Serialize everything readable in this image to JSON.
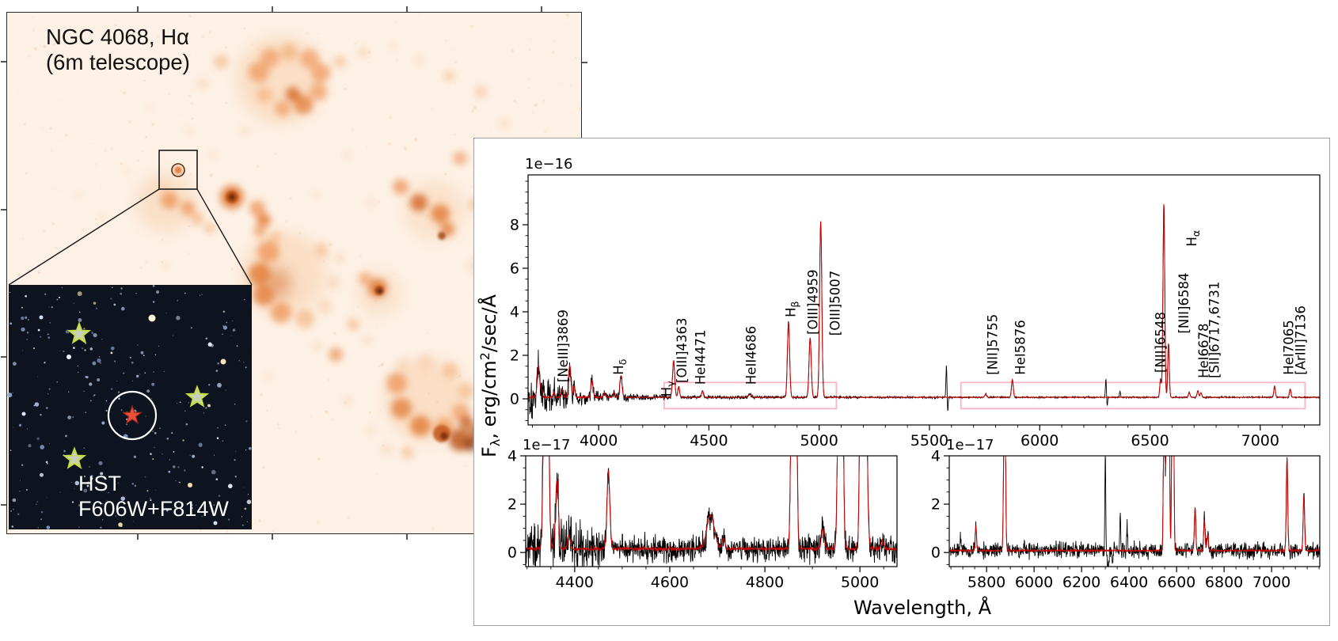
{
  "left_image": {
    "title": "NGC 4068, Hα",
    "subtitle": "(6m telescope)",
    "inset_label_line1": "HST",
    "inset_label_line2": "F606W+F814W"
  },
  "chart_data": {
    "type": "line",
    "xlabel": "Wavelength, Å",
    "ylabel": "Fλ, erg/cm²/sec/Å",
    "ylabel_parts": [
      {
        "t": "F",
        "style": "n"
      },
      {
        "t": "λ",
        "style": "sub"
      },
      {
        "t": ", erg/cm",
        "style": "n"
      },
      {
        "t": "2",
        "style": "sup"
      },
      {
        "t": "/sec/Å",
        "style": "n"
      }
    ],
    "colors": {
      "observed": "#000000",
      "model": "#cc0000",
      "zoom_box": "#ffb3c2"
    },
    "emission_line_labels": [
      {
        "text": "[NeIII]3869",
        "x": 3838,
        "y": 0.76
      },
      {
        "text": "H",
        "sub": "δ",
        "x": 4090,
        "y": 1.1
      },
      {
        "text": "H",
        "sub": "γ",
        "x": 4306,
        "y": 0.1
      },
      {
        "text": "[OIII]4363",
        "x": 4377,
        "y": 0.73
      },
      {
        "text": "HeI4471",
        "x": 4460,
        "y": 0.65
      },
      {
        "text": "HeII4686",
        "x": 4690,
        "y": 0.65
      },
      {
        "text": "H",
        "sub": "β",
        "x": 4870,
        "y": 3.75
      },
      {
        "text": "[OIII]4959",
        "x": 4970,
        "y": 2.95
      },
      {
        "text": "[OIII]5007",
        "x": 5071,
        "y": 2.9
      },
      {
        "text": "[NII]5755",
        "x": 5786,
        "y": 1.1
      },
      {
        "text": "HeI5876",
        "x": 5912,
        "y": 1.1
      },
      {
        "text": "[NII]6548",
        "x": 6546,
        "y": 1.2
      },
      {
        "text": "[NII]6584",
        "x": 6653,
        "y": 3.0
      },
      {
        "text": "H",
        "sub": "α",
        "x": 6688,
        "y": 7.0
      },
      {
        "text": "HeI6678",
        "x": 6742,
        "y": 0.95
      },
      {
        "text": "[SII]6717,6731",
        "x": 6790,
        "y": 0.95
      },
      {
        "text": "HeI7065",
        "x": 7128,
        "y": 1.1
      },
      {
        "text": "[ArIII]7136",
        "x": 7182,
        "y": 1.1
      }
    ],
    "panels": {
      "main": {
        "offset_label": "1e−16",
        "unit": "1e-16 erg/cm2/sec/A",
        "xlim": [
          3680,
          7270
        ],
        "ylim": [
          -1.2,
          10.29
        ],
        "xticks": [
          4000,
          4500,
          5000,
          5500,
          6000,
          6500,
          7000
        ],
        "yticks": [
          0,
          2,
          4,
          6,
          8
        ],
        "x_minor": 100,
        "y_minor": 0.5,
        "continuum_model": 0.07,
        "peaks_model_gaussians": [
          [
            3727,
            1.5,
            5
          ],
          [
            3740,
            0.35,
            4
          ],
          [
            3798,
            0.25,
            4
          ],
          [
            3835,
            0.4,
            4
          ],
          [
            3869,
            1.5,
            5
          ],
          [
            3889,
            0.55,
            4
          ],
          [
            3970,
            0.8,
            5
          ],
          [
            4026,
            0.22,
            4
          ],
          [
            4068,
            0.2,
            4
          ],
          [
            4101,
            1.0,
            5
          ],
          [
            4340,
            1.65,
            5
          ],
          [
            4363,
            0.5,
            4
          ],
          [
            4471,
            0.3,
            4
          ],
          [
            4686,
            0.12,
            7
          ],
          [
            4861,
            3.45,
            5
          ],
          [
            4959,
            2.75,
            5
          ],
          [
            5007,
            8.1,
            5
          ],
          [
            5755,
            0.15,
            4
          ],
          [
            5876,
            0.82,
            4
          ],
          [
            6548,
            0.85,
            3.5
          ],
          [
            6563,
            8.95,
            4
          ],
          [
            6584,
            2.5,
            3.5
          ],
          [
            6678,
            0.22,
            3.5
          ],
          [
            6717,
            0.3,
            3.5
          ],
          [
            6731,
            0.22,
            3.5
          ],
          [
            7065,
            0.5,
            3.5
          ],
          [
            7136,
            0.38,
            3.5
          ]
        ],
        "sky_lines_observed": [
          [
            5577,
            1.45,
            2.2
          ],
          [
            5583,
            -0.7,
            1.8
          ],
          [
            6300,
            0.85,
            2.2
          ],
          [
            6306,
            -0.4,
            1.8
          ],
          [
            6364,
            0.3,
            2.2
          ]
        ],
        "noise_profile": [
          [
            3800,
            0.85
          ],
          [
            3900,
            0.55
          ],
          [
            4000,
            0.35
          ],
          [
            4150,
            0.22
          ],
          [
            4350,
            0.13
          ],
          [
            4700,
            0.08
          ],
          [
            5100,
            0.06
          ],
          [
            5600,
            0.045
          ],
          [
            9999,
            0.035
          ]
        ],
        "zoom_regions": [
          [
            4297,
            5078
          ],
          [
            5643,
            7203
          ]
        ],
        "zoom_region_y": [
          -0.45,
          0.75
        ]
      },
      "zoom_blue": {
        "offset_label": "1e−17",
        "unit": "1e-17 erg/cm2/sec/A",
        "xlim": [
          4297,
          5078
        ],
        "ylim": [
          -0.585,
          4.0
        ],
        "xticks": [
          4400,
          4600,
          4800,
          5000
        ],
        "yticks": [
          0,
          2,
          4
        ],
        "x_minor": 50,
        "y_minor": 0.5,
        "continuum_model": 0.15,
        "peaks_model_gaussians": [
          [
            4340,
            28,
            3.5
          ],
          [
            4363,
            2.9,
            3
          ],
          [
            4388,
            0.5,
            3
          ],
          [
            4471,
            3.2,
            3
          ],
          [
            4686,
            1.4,
            8
          ],
          [
            4713,
            0.4,
            3
          ],
          [
            4861,
            34,
            3.5
          ],
          [
            4922,
            0.85,
            3
          ],
          [
            4959,
            27,
            3.5
          ],
          [
            5007,
            79,
            3.5
          ],
          [
            5016,
            1.0,
            3
          ],
          [
            5047,
            0.35,
            3
          ]
        ],
        "sky_lines_observed": [],
        "noise_profile": [
          [
            4460,
            0.95
          ],
          [
            9999,
            0.52
          ]
        ]
      },
      "zoom_red": {
        "offset_label": "1e−17",
        "unit": "1e-17 erg/cm2/sec/A",
        "xlim": [
          5643,
          7203
        ],
        "ylim": [
          -0.585,
          4.0
        ],
        "xticks": [
          5800,
          6000,
          6200,
          6400,
          6600,
          6800,
          7000
        ],
        "yticks": [
          0,
          2,
          4
        ],
        "x_minor": 50,
        "y_minor": 0.5,
        "continuum_model": 0.08,
        "peaks_model_gaussians": [
          [
            5755,
            1.0,
            3
          ],
          [
            5876,
            8.5,
            3.5
          ],
          [
            6548,
            8.0,
            3
          ],
          [
            6563,
            85,
            3.5
          ],
          [
            6584,
            24,
            3
          ],
          [
            6678,
            1.8,
            3
          ],
          [
            6717,
            1.25,
            3
          ],
          [
            6731,
            0.7,
            3
          ],
          [
            7065,
            3.85,
            3
          ],
          [
            7136,
            2.3,
            3
          ]
        ],
        "sky_lines_observed": [
          [
            5690,
            0.5,
            2
          ],
          [
            6300,
            4.3,
            1.8
          ],
          [
            6312,
            -0.9,
            2.5
          ],
          [
            6330,
            -0.5,
            2
          ],
          [
            6363,
            1.5,
            1.8
          ],
          [
            6392,
            1.1,
            2
          ]
        ],
        "noise_profile": [
          [
            9999,
            0.32
          ]
        ]
      }
    }
  }
}
